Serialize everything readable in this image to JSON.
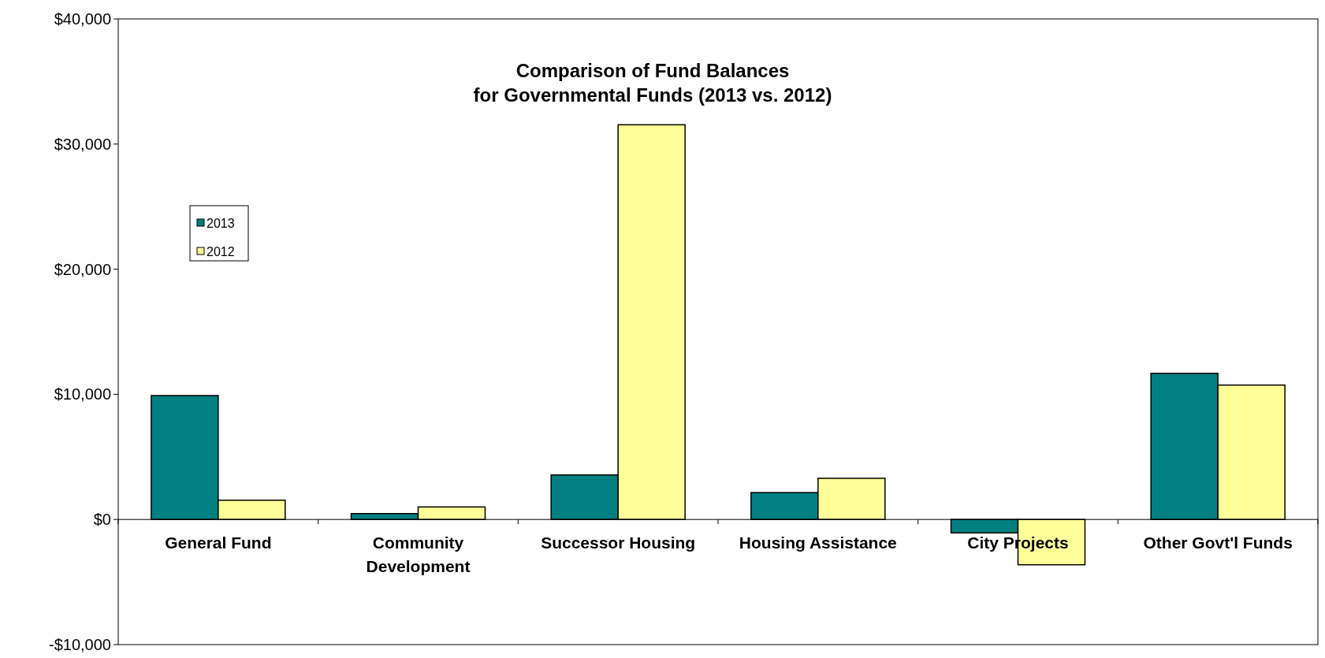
{
  "chart_data": {
    "type": "bar",
    "title": "Comparison of Fund Balances\nfor Governmental Funds (2013 vs. 2012)",
    "categories": [
      "General Fund",
      "Community Development",
      "Successor Housing",
      "Housing Assistance",
      "City Projects",
      "Other Govt'l Funds"
    ],
    "series": [
      {
        "name": "2013",
        "color": "#008080",
        "values": [
          9900,
          470,
          3560,
          2150,
          -1070,
          11680
        ]
      },
      {
        "name": "2012",
        "color": "#ffff99",
        "values": [
          1540,
          1000,
          31540,
          3290,
          -3620,
          10740
        ]
      }
    ],
    "ylim": [
      -10000,
      40000
    ],
    "yticks": [
      {
        "value": -10000,
        "label": "-$10,000"
      },
      {
        "value": 0,
        "label": "$0"
      },
      {
        "value": 10000,
        "label": "$10,000"
      },
      {
        "value": 20000,
        "label": "$20,000"
      },
      {
        "value": 30000,
        "label": "$30,000"
      },
      {
        "value": 40000,
        "label": "$40,000"
      }
    ],
    "legend": "top left",
    "grid": false
  }
}
